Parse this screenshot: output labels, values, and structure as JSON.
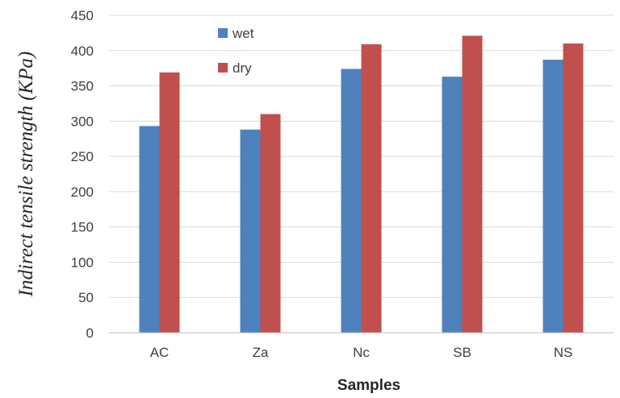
{
  "chart_data": {
    "type": "bar",
    "title": "",
    "xlabel": "Samples",
    "ylabel": "Indirect tensile strength (KPa)",
    "categories": [
      "AC",
      "Za",
      "Nc",
      "SB",
      "NS"
    ],
    "series": [
      {
        "name": "wet",
        "color": "#4F81BD",
        "values": [
          293,
          288,
          374,
          363,
          387
        ]
      },
      {
        "name": "dry",
        "color": "#C0504D",
        "values": [
          369,
          310,
          409,
          421,
          410
        ]
      }
    ],
    "ylim": [
      0,
      450
    ],
    "yticks": [
      0,
      50,
      100,
      150,
      200,
      250,
      300,
      350,
      400,
      450
    ],
    "grid": true,
    "legend": "top-left"
  }
}
